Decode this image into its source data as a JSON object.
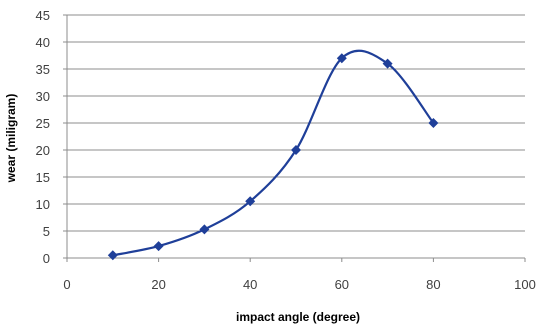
{
  "chart_data": {
    "type": "line",
    "title": "",
    "xlabel": "impact angle (degree)",
    "ylabel": "wear (miligram)",
    "xlim": [
      0,
      100
    ],
    "ylim": [
      0,
      45
    ],
    "x_ticks": [
      0,
      20,
      40,
      60,
      80,
      100
    ],
    "y_ticks": [
      0,
      5,
      10,
      15,
      20,
      25,
      30,
      35,
      40,
      45
    ],
    "grid": "horizontal",
    "legend": "none",
    "smooth": true,
    "series": [
      {
        "color": "#1f3f99",
        "marker": "diamond",
        "x": [
          10,
          20,
          30,
          40,
          50,
          60,
          70,
          80
        ],
        "y": [
          0.5,
          2.2,
          5.3,
          10.5,
          20,
          37,
          36,
          25
        ]
      }
    ]
  }
}
